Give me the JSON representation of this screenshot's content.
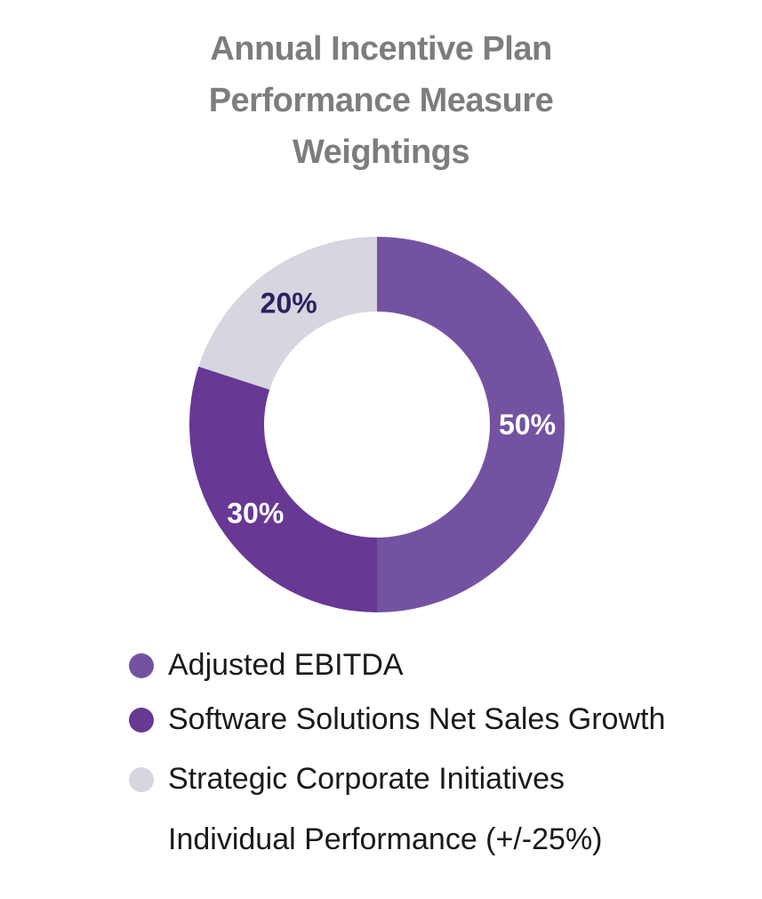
{
  "chart_data": {
    "type": "pie",
    "style": "donut",
    "title_lines": [
      "Annual Incentive Plan",
      "Performance Measure",
      "Weightings"
    ],
    "categories": [
      "Adjusted EBITDA",
      "Software Solutions Net Sales Growth",
      "Strategic Corporate Initiatives"
    ],
    "values": [
      50,
      30,
      20
    ],
    "value_labels": [
      "50%",
      "30%",
      "20%"
    ],
    "colors": [
      "#7353a1",
      "#673894",
      "#d7d5df"
    ],
    "label_colors": [
      "#ffffff",
      "#ffffff",
      "#2e2160"
    ],
    "legend_position": "bottom",
    "legend_extra": "Individual Performance (+/-25%)"
  }
}
